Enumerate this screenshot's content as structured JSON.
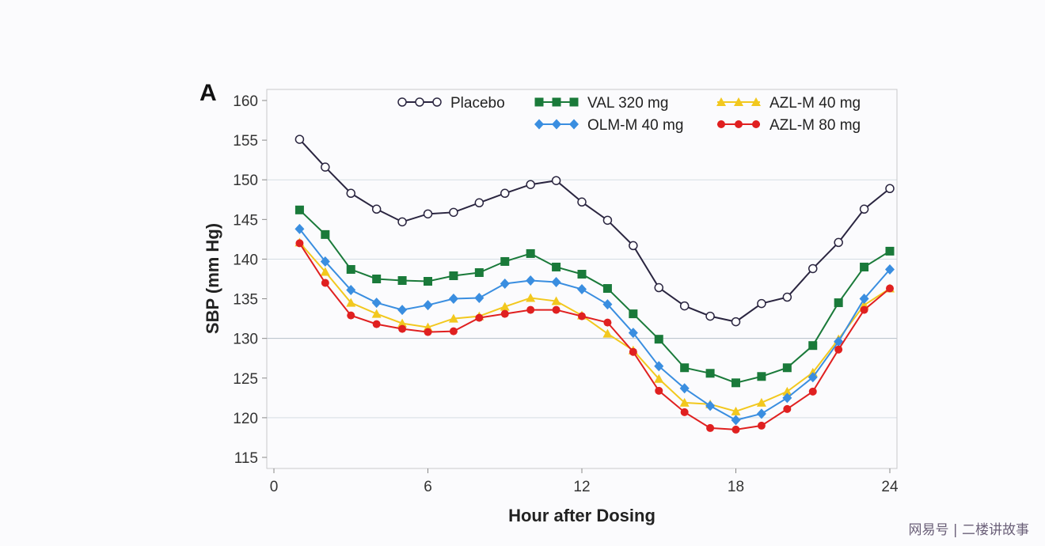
{
  "chart_data": {
    "type": "line",
    "panel_label": "A",
    "xlabel": "Hour after Dosing",
    "ylabel": "SBP (mm Hg)",
    "xlim": [
      0,
      24
    ],
    "ylim": [
      115,
      160
    ],
    "xticks": [
      0,
      6,
      12,
      18,
      24
    ],
    "yticks": [
      115,
      120,
      125,
      130,
      135,
      140,
      145,
      150,
      155,
      160
    ],
    "grid": "horizontal at 120, 130, 140, 150",
    "legend_placement": "top",
    "x": [
      1,
      2,
      3,
      4,
      5,
      6,
      7,
      8,
      9,
      10,
      11,
      12,
      13,
      14,
      15,
      16,
      17,
      18,
      19,
      20,
      21,
      22,
      23,
      24
    ],
    "series": [
      {
        "name": "Placebo",
        "color": "#2a2540",
        "marker": "open-circle",
        "values": [
          155.1,
          151.6,
          148.3,
          146.3,
          144.7,
          145.7,
          145.9,
          147.1,
          148.3,
          149.4,
          149.9,
          147.2,
          144.9,
          141.7,
          136.4,
          134.1,
          132.8,
          132.1,
          134.4,
          135.2,
          138.8,
          142.1,
          146.3,
          148.9
        ]
      },
      {
        "name": "VAL 320 mg",
        "color": "#1a7a3a",
        "marker": "square",
        "values": [
          146.2,
          143.1,
          138.7,
          137.5,
          137.3,
          137.2,
          137.9,
          138.3,
          139.7,
          140.7,
          139.0,
          138.1,
          136.3,
          133.1,
          129.9,
          126.3,
          125.6,
          124.4,
          125.2,
          126.3,
          129.1,
          134.5,
          139.0,
          141.0
        ]
      },
      {
        "name": "AZL-M 40 mg",
        "color": "#f2c81e",
        "marker": "triangle",
        "values": [
          142.1,
          138.4,
          134.5,
          133.1,
          131.9,
          131.4,
          132.5,
          132.8,
          134.0,
          135.1,
          134.7,
          132.9,
          130.6,
          128.5,
          124.9,
          121.9,
          121.7,
          120.8,
          121.9,
          123.3,
          125.7,
          129.9,
          134.2,
          136.3
        ]
      },
      {
        "name": "OLM-M 40 mg",
        "color": "#3a8ee0",
        "marker": "diamond",
        "values": [
          143.8,
          139.7,
          136.1,
          134.5,
          133.6,
          134.2,
          135.0,
          135.1,
          136.9,
          137.3,
          137.1,
          136.2,
          134.3,
          130.7,
          126.5,
          123.7,
          121.5,
          119.7,
          120.5,
          122.5,
          125.1,
          129.6,
          135.0,
          138.7
        ]
      },
      {
        "name": "AZL-M 80 mg",
        "color": "#e02020",
        "marker": "circle",
        "values": [
          142.0,
          137.0,
          132.9,
          131.8,
          131.2,
          130.8,
          130.9,
          132.6,
          133.1,
          133.6,
          133.6,
          132.8,
          132.0,
          128.3,
          123.4,
          120.7,
          118.7,
          118.5,
          119.0,
          121.1,
          123.3,
          128.6,
          133.6,
          136.3
        ]
      }
    ]
  },
  "watermark": "网易号 | 二楼讲故事"
}
